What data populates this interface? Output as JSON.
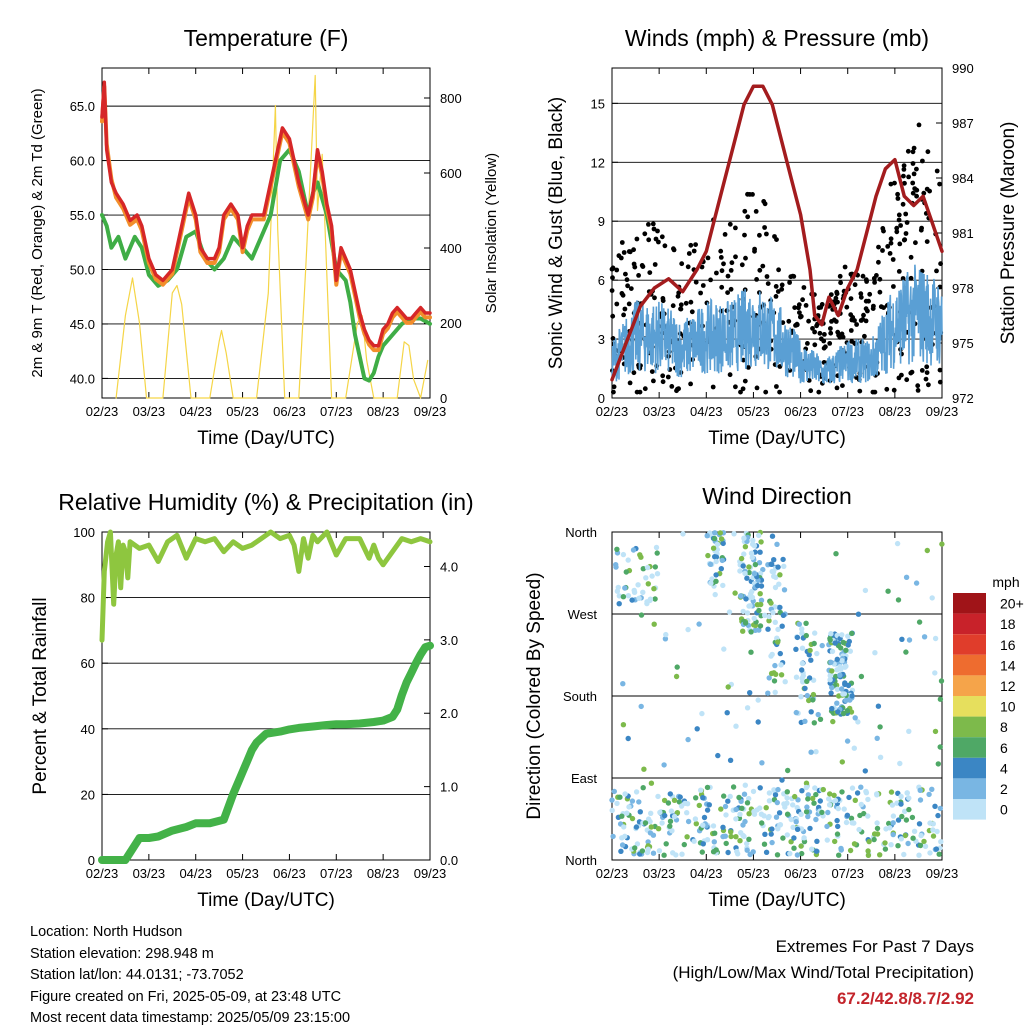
{
  "chart_data": [
    {
      "type": "line",
      "title": "Temperature (F)",
      "xlabel": "Time (Day/UTC)",
      "ylabel": "2m & 9m T (Red, Orange) & 2m Td (Green)",
      "ylabel_right": "Solar Insolation (Yellow)",
      "x_ticks": [
        "02/23",
        "03/23",
        "04/23",
        "05/23",
        "06/23",
        "07/23",
        "08/23",
        "09/23"
      ],
      "ylim": [
        38.2,
        68.5
      ],
      "y_ticks": [
        "40.0",
        "45.0",
        "50.0",
        "55.0",
        "60.0",
        "65.0"
      ],
      "ylim_right": [
        0,
        880
      ],
      "y_ticks_right": [
        "0",
        "200",
        "400",
        "600",
        "800"
      ],
      "grid": true,
      "series": [
        {
          "color": "#d62728",
          "x": [
            0,
            0.05,
            0.1,
            0.2,
            0.3,
            0.45,
            0.6,
            0.75,
            0.85,
            1.0,
            1.15,
            1.3,
            1.5,
            1.7,
            1.85,
            2.0,
            2.1,
            2.25,
            2.4,
            2.5,
            2.6,
            2.75,
            2.9,
            3.0,
            3.1,
            3.2,
            3.3,
            3.45,
            3.6,
            3.75,
            3.85,
            4.0,
            4.2,
            4.4,
            4.5,
            4.6,
            4.7,
            4.8,
            4.9,
            5.0,
            5.1,
            5.2,
            5.3,
            5.4,
            5.5,
            5.6,
            5.7,
            5.8,
            5.9,
            6.0,
            6.1,
            6.2,
            6.3,
            6.4,
            6.5,
            6.6,
            6.7,
            6.8,
            6.9,
            7.0
          ],
          "values": [
            64,
            67.2,
            61,
            58,
            57,
            56,
            54.5,
            55,
            54,
            51,
            49.5,
            49,
            50,
            54,
            57,
            55,
            52,
            51,
            51,
            52,
            55,
            56,
            55,
            52,
            54,
            55,
            55,
            55,
            58,
            61,
            63,
            62,
            58,
            55,
            57,
            61,
            59,
            56,
            54,
            49,
            52,
            51,
            50,
            48,
            46,
            44.5,
            43.5,
            43,
            43,
            44.5,
            45,
            46,
            46.5,
            46,
            45.5,
            45.5,
            46,
            46.5,
            46,
            46
          ]
        },
        {
          "color": "#f28e2b",
          "x": [
            0,
            0.05,
            0.1,
            0.2,
            0.3,
            0.45,
            0.6,
            0.75,
            0.85,
            1.0,
            1.15,
            1.3,
            1.5,
            1.7,
            1.85,
            2.0,
            2.1,
            2.25,
            2.4,
            2.5,
            2.6,
            2.75,
            2.9,
            3.0,
            3.1,
            3.2,
            3.3,
            3.45,
            3.6,
            3.75,
            3.85,
            4.0,
            4.2,
            4.4,
            4.5,
            4.6,
            4.7,
            4.8,
            4.9,
            5.0,
            5.1,
            5.2,
            5.3,
            5.4,
            5.5,
            5.6,
            5.7,
            5.8,
            5.9,
            6.0,
            6.1,
            6.2,
            6.3,
            6.4,
            6.5,
            6.6,
            6.7,
            6.8,
            6.9,
            7.0
          ],
          "values": [
            63.6,
            66.8,
            61.5,
            58.3,
            56.6,
            55.6,
            54.1,
            54.6,
            53.6,
            50.6,
            49.1,
            48.6,
            49.6,
            53.6,
            56.6,
            54.6,
            51.6,
            50.6,
            50.6,
            51.6,
            54.6,
            55.6,
            54.6,
            51.6,
            53.6,
            54.6,
            54.6,
            54.6,
            57.6,
            60.6,
            62.6,
            61.6,
            57.6,
            54.6,
            56.6,
            60.6,
            58.6,
            55.6,
            53.6,
            48.6,
            51.6,
            50.6,
            49.6,
            47.6,
            45.6,
            44.1,
            43.1,
            42.6,
            42.6,
            44.1,
            44.6,
            45.6,
            46.1,
            45.6,
            45.1,
            45.1,
            45.6,
            46.1,
            45.6,
            45.6
          ]
        },
        {
          "color": "#3fad46",
          "x": [
            0,
            0.1,
            0.2,
            0.35,
            0.5,
            0.7,
            0.85,
            1.0,
            1.2,
            1.4,
            1.6,
            1.8,
            2.0,
            2.2,
            2.4,
            2.6,
            2.8,
            3.0,
            3.2,
            3.4,
            3.6,
            3.8,
            4.0,
            4.2,
            4.4,
            4.5,
            4.6,
            4.8,
            5.0,
            5.2,
            5.3,
            5.4,
            5.5,
            5.6,
            5.7,
            5.8,
            5.9,
            6.0,
            6.2,
            6.4,
            6.6,
            6.8,
            7.0
          ],
          "values": [
            55,
            54,
            52,
            53,
            51,
            53,
            52,
            49.5,
            48.5,
            49,
            50,
            53,
            53.5,
            51,
            50,
            51,
            53,
            52,
            51,
            53,
            55,
            60,
            61,
            59,
            55,
            57,
            58,
            55,
            50,
            49,
            47,
            44,
            42,
            40,
            39.8,
            40.5,
            42,
            43,
            44,
            45,
            45.5,
            45.5,
            45
          ]
        },
        {
          "color": "#f5d547",
          "x": [
            0.3,
            0.5,
            0.65,
            0.8,
            0.95,
            1.3,
            1.5,
            1.6,
            1.7,
            1.9,
            2.3,
            2.5,
            2.55,
            2.65,
            2.8,
            3.3,
            3.55,
            3.7,
            3.75,
            3.9,
            4.2,
            4.35,
            4.55,
            4.6,
            4.7,
            4.9,
            5.2,
            5.45,
            5.55,
            5.65,
            5.8,
            6.3,
            6.45,
            6.55,
            6.65,
            6.8,
            6.95
          ],
          "values": [
            0,
            220,
            320,
            200,
            0,
            0,
            280,
            300,
            250,
            0,
            0,
            150,
            180,
            120,
            0,
            0,
            280,
            780,
            450,
            0,
            0,
            350,
            860,
            500,
            650,
            0,
            0,
            200,
            220,
            100,
            0,
            0,
            150,
            140,
            50,
            0,
            100
          ]
        }
      ]
    },
    {
      "type": "scatter",
      "title": "Winds (mph) & Pressure (mb)",
      "xlabel": "Time (Day/UTC)",
      "ylabel": "Sonic Wind & Gust (Blue, Black)",
      "ylabel_right": "Station Pressure (Maroon)",
      "x_ticks": [
        "02/23",
        "03/23",
        "04/23",
        "05/23",
        "06/23",
        "07/23",
        "08/23",
        "09/23"
      ],
      "ylim": [
        0,
        16.8
      ],
      "y_ticks": [
        "0",
        "3",
        "6",
        "9",
        "12",
        "15"
      ],
      "ylim_right": [
        972,
        990
      ],
      "y_ticks_right": [
        "972",
        "975",
        "978",
        "981",
        "984",
        "987",
        "990"
      ],
      "grid": true,
      "gust_envelope": {
        "color": "#000000",
        "x": [
          0,
          0.5,
          1,
          1.5,
          2,
          2.5,
          3,
          3.5,
          4,
          4.5,
          5,
          5.5,
          6,
          6.5,
          7
        ],
        "values": [
          7,
          10,
          9,
          7,
          10,
          9,
          11,
          9,
          6,
          5,
          7,
          6,
          12,
          14,
          11
        ]
      },
      "wind_envelope": {
        "color": "#5a9fd4",
        "x": [
          0,
          0.5,
          1,
          1.5,
          2,
          2.5,
          3,
          3.5,
          4,
          4.5,
          5,
          5.5,
          6,
          6.5,
          7
        ],
        "values": [
          3,
          5,
          5,
          4,
          5,
          5,
          6,
          5,
          3,
          2,
          3,
          3,
          6,
          7,
          6
        ]
      },
      "pressure": {
        "color": "#a31c1e",
        "x": [
          0,
          0.3,
          0.6,
          0.9,
          1.2,
          1.5,
          1.8,
          2.0,
          2.3,
          2.6,
          2.8,
          3.0,
          3.2,
          3.4,
          3.6,
          3.8,
          4.0,
          4.2,
          4.3,
          4.45,
          4.6,
          4.8,
          5.0,
          5.2,
          5.4,
          5.6,
          5.8,
          6.0,
          6.2,
          6.4,
          6.6,
          6.8,
          7.0
        ],
        "values": [
          973,
          975,
          977,
          978,
          978.5,
          977.8,
          979,
          980,
          983,
          986,
          988,
          989,
          989,
          988,
          986,
          984,
          982,
          979,
          976.5,
          976,
          977.5,
          976.5,
          978,
          979,
          981,
          983,
          984.5,
          985,
          983,
          982.5,
          983,
          981.5,
          980
        ]
      }
    },
    {
      "type": "line",
      "title": "Relative Humidity (%) & Precipitation (in)",
      "xlabel": "Time (Day/UTC)",
      "ylabel": "Percent & Total Rainfall",
      "x_ticks": [
        "02/23",
        "03/23",
        "04/23",
        "05/23",
        "06/23",
        "07/23",
        "08/23",
        "09/23"
      ],
      "ylim": [
        0,
        100
      ],
      "y_ticks": [
        "0",
        "20",
        "40",
        "60",
        "80",
        "100"
      ],
      "ylim_right": [
        0,
        4.47
      ],
      "y_ticks_right": [
        "0.0",
        "1.0",
        "2.0",
        "3.0",
        "4.0"
      ],
      "grid": true,
      "series": [
        {
          "color": "#8ec63f",
          "x": [
            0,
            0.05,
            0.12,
            0.18,
            0.25,
            0.3,
            0.35,
            0.4,
            0.45,
            0.5,
            0.55,
            0.6,
            0.8,
            1.0,
            1.2,
            1.4,
            1.6,
            1.8,
            2.0,
            2.2,
            2.4,
            2.6,
            2.8,
            3.0,
            3.2,
            3.4,
            3.6,
            3.8,
            4.0,
            4.1,
            4.2,
            4.3,
            4.4,
            4.5,
            4.6,
            4.8,
            5.0,
            5.2,
            5.5,
            5.7,
            5.8,
            5.9,
            6.0,
            6.2,
            6.4,
            6.6,
            6.8,
            7.0
          ],
          "values": [
            67,
            88,
            97,
            100,
            78,
            93,
            97,
            83,
            96,
            94,
            86,
            97,
            95,
            96,
            91,
            97,
            99,
            92,
            98,
            97,
            98,
            94,
            97,
            95,
            96,
            98,
            100,
            98,
            99,
            96,
            88,
            98,
            92,
            99,
            97,
            100,
            93,
            98,
            98,
            92,
            96,
            92,
            90,
            94,
            98,
            97,
            98,
            97
          ]
        },
        {
          "color": "#43b248",
          "x": [
            0,
            0.5,
            0.8,
            1.0,
            1.2,
            1.5,
            1.8,
            2.0,
            2.3,
            2.6,
            2.8,
            2.9,
            3.0,
            3.1,
            3.2,
            3.3,
            3.5,
            3.8,
            4.0,
            4.2,
            4.5,
            4.8,
            5.0,
            5.2,
            5.5,
            5.8,
            6.0,
            6.2,
            6.3,
            6.4,
            6.5,
            6.6,
            6.7,
            6.8,
            6.9,
            7.0
          ],
          "values": [
            0,
            0,
            0,
            0,
            0,
            0,
            0,
            0,
            0,
            0,
            0,
            0,
            0,
            0,
            0,
            0,
            0,
            0,
            0,
            0,
            0,
            0,
            0,
            0,
            0,
            0,
            0,
            0,
            0,
            0,
            0,
            0,
            0,
            0,
            0,
            0
          ],
          "values_in": [
            0,
            0,
            0.3,
            0.3,
            0.32,
            0.4,
            0.45,
            0.5,
            0.5,
            0.55,
            0.9,
            1.05,
            1.2,
            1.35,
            1.5,
            1.6,
            1.72,
            1.75,
            1.78,
            1.8,
            1.82,
            1.84,
            1.85,
            1.85,
            1.86,
            1.88,
            1.9,
            1.95,
            2.05,
            2.25,
            2.42,
            2.55,
            2.68,
            2.8,
            2.9,
            2.92
          ]
        }
      ]
    },
    {
      "type": "scatter",
      "title": "Wind Direction",
      "xlabel": "Time (Day/UTC)",
      "ylabel": "Direction (Colored By Speed)",
      "x_ticks": [
        "02/23",
        "03/23",
        "04/23",
        "05/23",
        "06/23",
        "07/23",
        "08/23",
        "09/23"
      ],
      "y_ticks": [
        "North",
        "East",
        "South",
        "West",
        "North"
      ],
      "ylim": [
        0,
        360
      ],
      "grid": true,
      "legend": {
        "title": "mph",
        "labels": [
          "20+",
          "18",
          "16",
          "14",
          "12",
          "10",
          "8",
          "6",
          "4",
          "2",
          "0"
        ],
        "colors": [
          "#a01418",
          "#c8222a",
          "#e03d2b",
          "#ee6c2f",
          "#f5a44a",
          "#e6df5d",
          "#7dba4b",
          "#4fa866",
          "#3b86c4",
          "#79b6e3",
          "#bfe3f7"
        ]
      }
    }
  ],
  "footer": {
    "location": "Location: North Hudson",
    "elevation": "Station elevation: 298.948 m",
    "latlon": "Station lat/lon: 44.0131; -73.7052",
    "created": "Figure created on Fri, 2025-05-09, at 23:48 UTC",
    "recent": "Most recent data timestamp: 2025/05/09 23:15:00"
  },
  "extremes": {
    "title": "Extremes For Past 7 Days",
    "subtitle": "(High/Low/Max Wind/Total Precipitation)",
    "values": "67.2/42.8/8.7/2.92"
  }
}
